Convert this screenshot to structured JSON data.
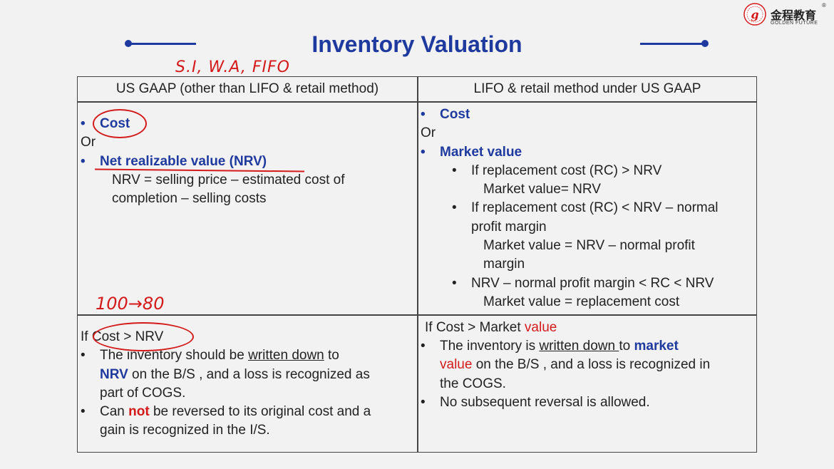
{
  "header": {
    "title": "Inventory Valuation"
  },
  "logo": {
    "chinese": "金程教育",
    "english": "GOLDEN FUTURE",
    "reg": "®"
  },
  "annotations": {
    "top": "S.I, W.A, FIFO",
    "mid": "100→80"
  },
  "table": {
    "col_left_header": "US GAAP (other than LIFO & retail method)",
    "col_right_header": "LIFO & retail method under US GAAP",
    "left_top": {
      "item1": "Cost",
      "or": "Or",
      "item2": "Net realizable value (NRV)",
      "formula_line1": "NRV = selling price – estimated cost of",
      "formula_line2": "completion – selling costs"
    },
    "right_top": {
      "item1": "Cost",
      "or": "Or",
      "item2": "Market value",
      "c1_line1": "If replacement cost (RC) > NRV",
      "c1_line2": "Market value= NRV",
      "c2_line1": "If replacement cost (RC) < NRV – normal",
      "c2_line2": "profit margin",
      "c2_line3": "Market value = NRV – normal profit",
      "c2_line4": "margin",
      "c3_line1": "NRV – normal profit margin < RC < NRV",
      "c3_line2": "Market value = replacement cost"
    },
    "left_bottom": {
      "if": "If ",
      "cond": "Cost > NRV",
      "b1_a": "The inventory should be ",
      "b1_u": "written down",
      "b1_b": " to",
      "b1_nrv": "NRV",
      "b1_c": " on the B/S , and a loss is recognized as",
      "b1_d": "part of COGS.",
      "b2_a": "Can ",
      "b2_not": "not",
      "b2_b": " be reversed to its original cost and a",
      "b2_c": "gain is recognized in the I/S."
    },
    "right_bottom": {
      "cond_a": "If Cost > Market ",
      "cond_value": "value",
      "b1_a": "The inventory is ",
      "b1_u": "written down ",
      "b1_b": "to ",
      "b1_market": "market",
      "b1_value": "value",
      "b1_c": " on the B/S , and a loss is recognized in",
      "b1_d": "the COGS.",
      "b2": "No subsequent reversal is allowed."
    }
  }
}
